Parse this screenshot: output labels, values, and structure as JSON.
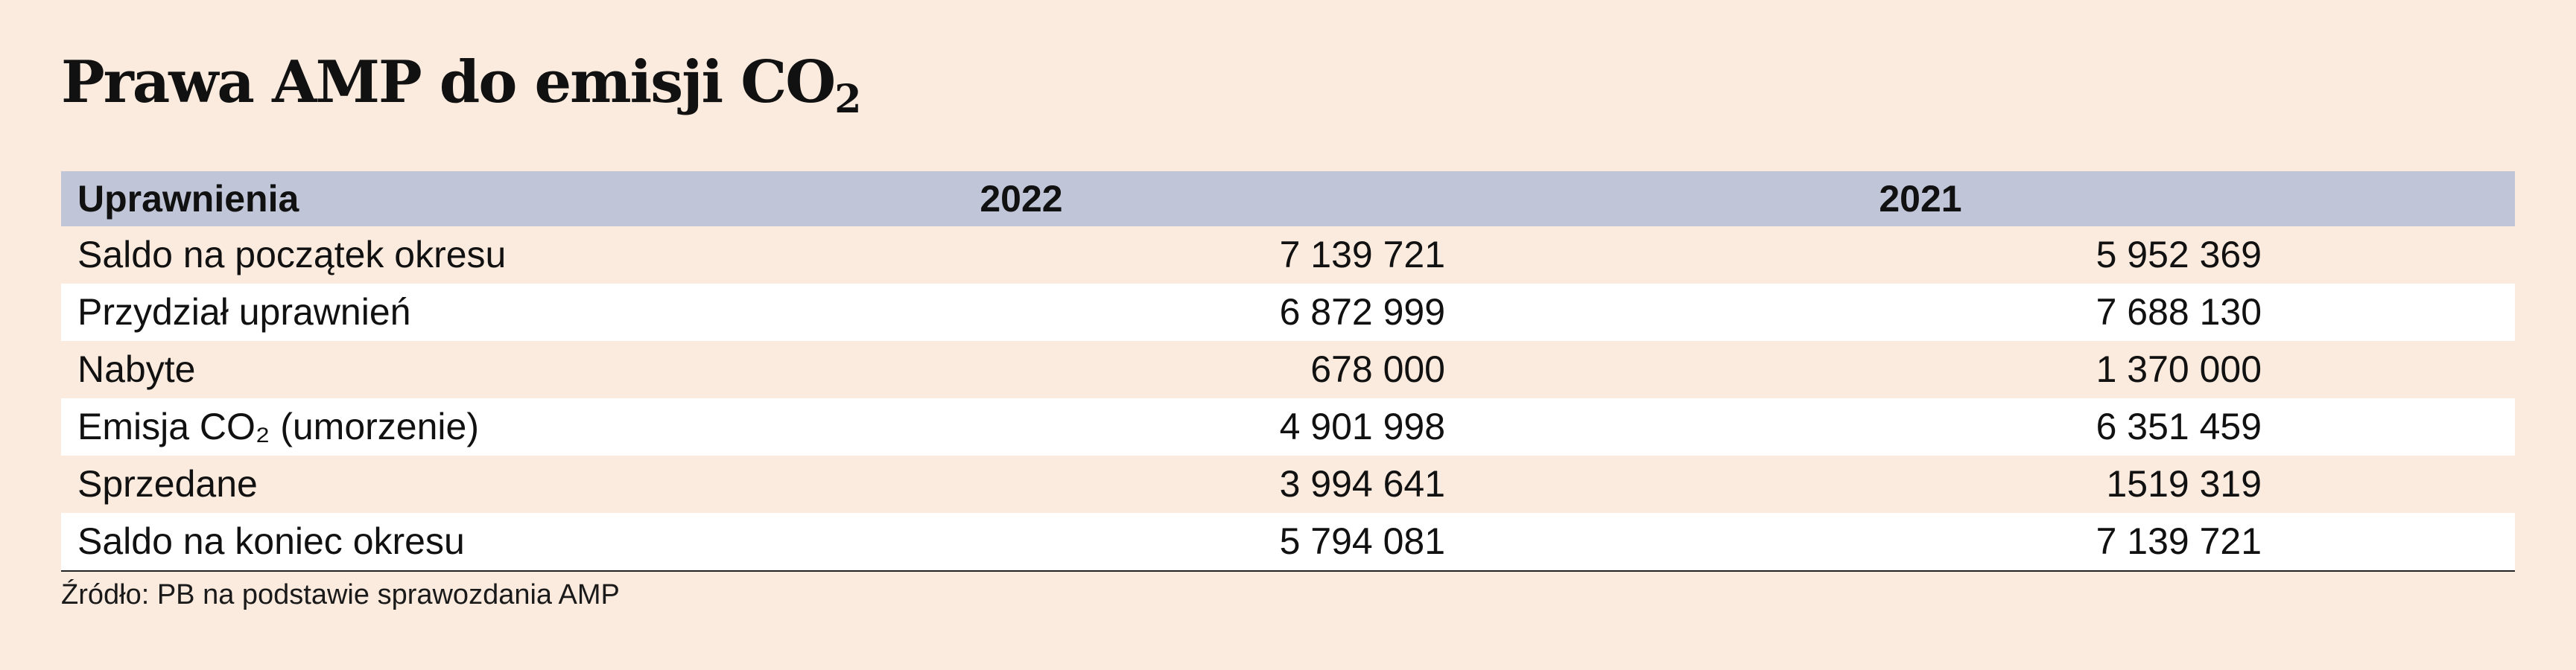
{
  "title": {
    "main": "Prawa AMP do emisji CO",
    "subscript": "2"
  },
  "chart_data": {
    "type": "table",
    "columns": [
      "Uprawnienia",
      "2022",
      "2021"
    ],
    "rows": [
      {
        "label": "Saldo na początek okresu",
        "v2022": "7 139 721",
        "v2021": "5 952 369"
      },
      {
        "label": "Przydział uprawnień",
        "v2022": "6 872 999",
        "v2021": "7 688 130"
      },
      {
        "label": "Nabyte",
        "v2022": "678 000",
        "v2021": "1 370 000"
      },
      {
        "label": "Emisja CO₂ (umorzenie)",
        "v2022": "4 901 998",
        "v2021": "6 351 459"
      },
      {
        "label": "Sprzedane",
        "v2022": "3 994 641",
        "v2021": "1519 319"
      },
      {
        "label": "Saldo na koniec okresu",
        "v2022": "5 794 081",
        "v2021": "7 139 721"
      }
    ]
  },
  "source": "Źródło: PB na podstawie sprawozdania AMP",
  "colors": {
    "background": "#fbebde",
    "header_band": "#c0c5d8",
    "stripe": "#ffffff"
  }
}
